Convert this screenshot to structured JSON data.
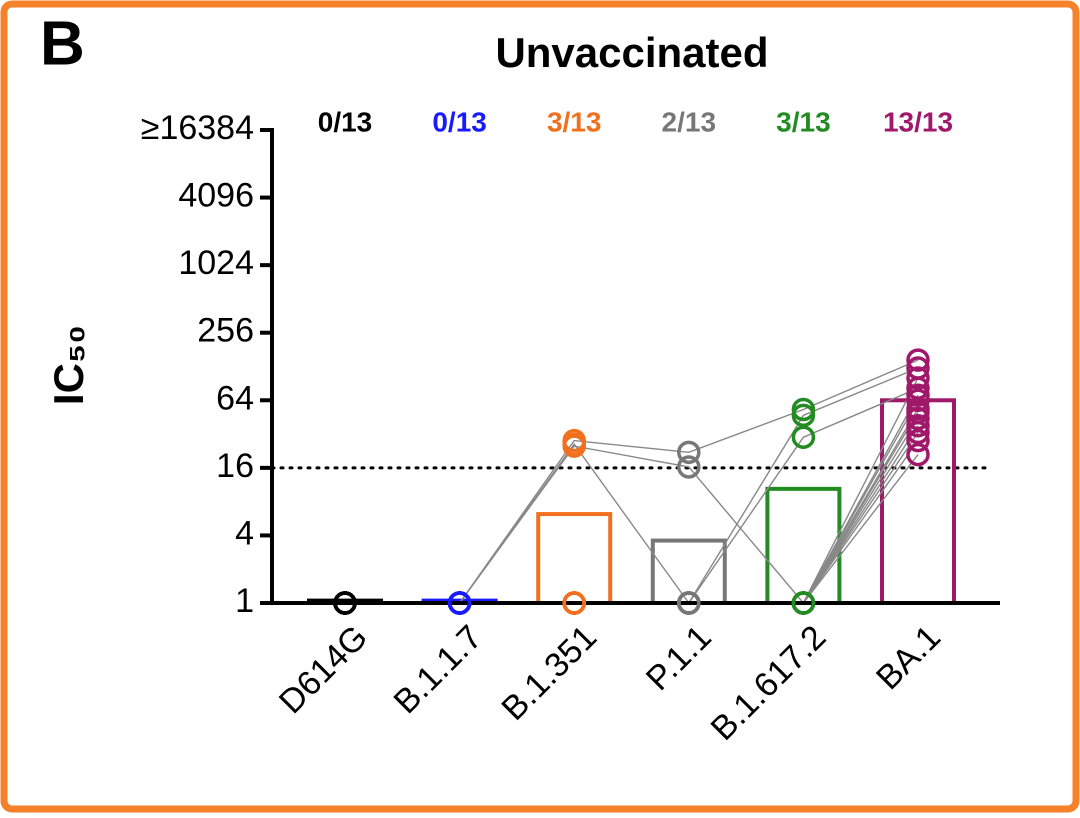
{
  "chart_data": {
    "type": "bar",
    "panel_label": "B",
    "title": "Unvaccinated",
    "y_label": "IC₅₀",
    "log_base": 2,
    "categories": [
      "D614G",
      "B.1.1.7",
      "B.1.351",
      "P.1.1",
      "B.1.617.2",
      "BA.1"
    ],
    "colors": [
      "#000000",
      "#1a1aff",
      "#f07020",
      "#777777",
      "#228b22",
      "#a0186a"
    ],
    "counts": [
      "0/13",
      "0/13",
      "3/13",
      "2/13",
      "3/13",
      "13/13"
    ],
    "values": [
      1.05,
      1.05,
      6.2,
      3.6,
      10.4,
      64
    ],
    "points": [
      [
        1,
        1,
        1,
        1,
        1,
        1,
        1,
        1,
        1,
        1,
        1,
        1,
        1
      ],
      [
        1,
        1,
        1,
        1,
        1,
        1,
        1,
        1,
        1,
        1,
        1,
        1,
        1
      ],
      [
        28,
        26,
        25,
        1,
        1,
        1,
        1,
        1,
        1,
        1,
        1,
        1,
        1
      ],
      [
        22,
        1,
        16.3,
        1,
        1,
        1,
        1,
        1,
        1,
        1,
        1,
        1,
        1
      ],
      [
        53,
        47,
        1,
        30,
        1,
        1,
        1,
        1,
        1,
        1,
        1,
        1,
        1
      ],
      [
        146,
        124,
        101,
        82,
        71,
        64,
        54,
        50,
        44,
        38,
        33,
        28,
        21
      ]
    ],
    "threshold": 16,
    "ylim": [
      1,
      16384
    ],
    "yticks": [
      1,
      4,
      16,
      64,
      256,
      1024,
      4096,
      {
        "value": 16384,
        "label": "≥16384"
      }
    ]
  }
}
